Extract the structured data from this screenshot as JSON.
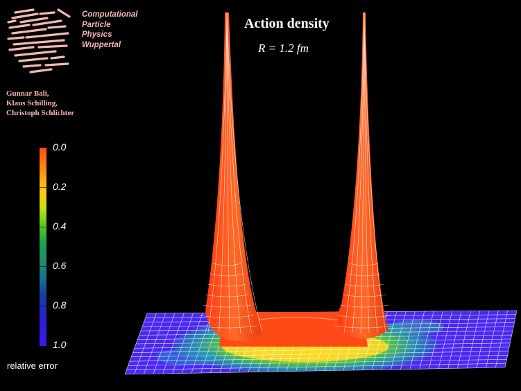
{
  "lab": {
    "lines": [
      "Computational",
      "Particle",
      "Physics",
      "Wuppertal"
    ]
  },
  "authors": [
    "Gunnar Bali,",
    "Klaus Schilling,",
    "Christoph Schlichter"
  ],
  "title": "Action density",
  "subtitle": "R = 1.2 fm",
  "colorbar": {
    "labels": [
      "0.0",
      "0.2",
      "0.4",
      "0.6",
      "0.8",
      "1.0"
    ],
    "caption": "relative error"
  },
  "colors": {
    "background": "#000000",
    "peak": "#ff4a1a",
    "lab_text": "#f3b8b2",
    "mesh_line": "#ffffff"
  }
}
